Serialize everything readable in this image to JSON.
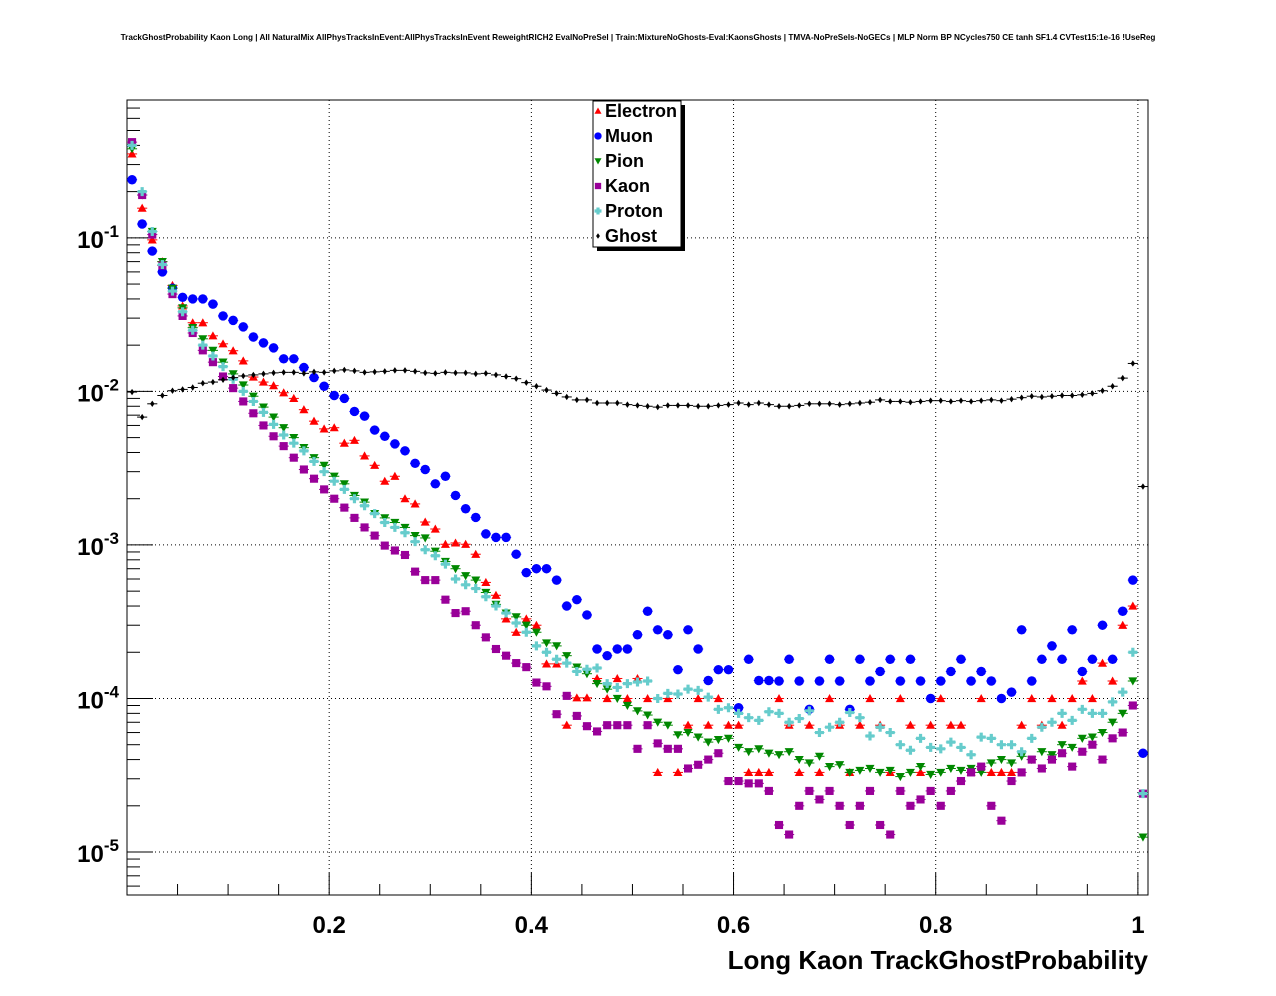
{
  "chart_data": {
    "type": "scatter",
    "title": "TrackGhostProbability Kaon Long | All NaturalMix AllPhysTracksInEvent:AllPhysTracksInEvent ReweightRICH2 EvalNoPreSel | Train:MixtureNoGhosts-Eval:KaonsGhosts | TMVA-NoPreSels-NoGECs | MLP Norm BP NCycles750 CE tanh SF1.4 CVTest15:1e-16 !UseReg",
    "xlabel": "Long Kaon TrackGhostProbability",
    "ylabel": "",
    "xlim": [
      0,
      1.01
    ],
    "ylim": [
      5.25e-06,
      0.79
    ],
    "yscale": "log",
    "grid": true,
    "legend_position": "top-center",
    "xticks": [
      0.2,
      0.4,
      0.6,
      0.8,
      1.0
    ],
    "xticklabels": [
      "0.2",
      "0.4",
      "0.6",
      "0.8",
      "1"
    ],
    "yticks": [
      0.1,
      0.01,
      0.001,
      0.0001,
      1e-05
    ],
    "yticklabels": [
      {
        "base": "10",
        "exp": "-1"
      },
      {
        "base": "10",
        "exp": "-2"
      },
      {
        "base": "10",
        "exp": "-3"
      },
      {
        "base": "10",
        "exp": "-4"
      },
      {
        "base": "10",
        "exp": "-5"
      }
    ],
    "bin_center_start": 0.005,
    "bin_width": 0.01,
    "series": [
      {
        "name": "Electron",
        "color": "#ff0000",
        "marker": "triangle-up",
        "values": [
          0.352,
          0.156,
          0.097,
          0.07,
          0.049,
          0.036,
          0.028,
          0.028,
          0.023,
          0.0204,
          0.0184,
          0.0158,
          0.0124,
          0.0115,
          0.0109,
          0.0098,
          0.009,
          0.0076,
          0.0064,
          0.0057,
          0.0058,
          0.0046,
          0.0048,
          0.0038,
          0.0033,
          0.0026,
          0.0028,
          0.002,
          0.00185,
          0.00141,
          0.00127,
          0.00101,
          0.00103,
          0.00101,
          0.00087,
          0.00057,
          0.00047,
          0.00033,
          0.00027,
          0.00033,
          0.0003,
          0.000168,
          0.000168,
          6.7e-05,
          0.000101,
          0.000101,
          0.000135,
          0.0001,
          0.000135,
          0.0001,
          0.000135,
          0.0001,
          3.3e-05,
          0.0001,
          3.3e-05,
          6.7e-05,
          0.0001,
          6.7e-05,
          0.0001,
          6.7e-05,
          6.7e-05,
          3.3e-05,
          3.3e-05,
          3.3e-05,
          0.0001,
          6.7e-05,
          3.3e-05,
          6.7e-05,
          3.3e-05,
          0.0001,
          6.7e-05,
          3.3e-05,
          6.7e-05,
          0.0001,
          6.7e-05,
          3.3e-05,
          0.0001,
          6.7e-05,
          3.3e-05,
          6.7e-05,
          0.0001,
          6.7e-05,
          6.7e-05,
          3.3e-05,
          0.0001,
          3.3e-05,
          3.3e-05,
          3.3e-05,
          6.7e-05,
          0.0001,
          6.7e-05,
          0.0001,
          6.7e-05,
          0.0001,
          0.00013,
          0.0001,
          0.00017,
          0.00013,
          0.0003,
          0.0004,
          null
        ]
      },
      {
        "name": "Muon",
        "color": "#0000ff",
        "marker": "circle",
        "values": [
          0.239,
          0.123,
          0.082,
          0.06,
          0.047,
          0.041,
          0.04,
          0.04,
          0.037,
          0.031,
          0.029,
          0.0263,
          0.0226,
          0.0207,
          0.0192,
          0.0163,
          0.0163,
          0.0143,
          0.0123,
          0.0108,
          0.0094,
          0.009,
          0.0074,
          0.0069,
          0.0056,
          0.0051,
          0.00455,
          0.0041,
          0.0034,
          0.0031,
          0.0025,
          0.0028,
          0.0021,
          0.00172,
          0.00151,
          0.00118,
          0.00112,
          0.00112,
          0.00087,
          0.00066,
          0.0007,
          0.0007,
          0.00059,
          0.0004,
          0.00044,
          0.00035,
          0.00021,
          0.00019,
          0.00021,
          0.00021,
          0.00026,
          0.00037,
          0.00028,
          0.00026,
          0.000154,
          0.00028,
          0.00021,
          0.000131,
          0.000154,
          0.000154,
          8.7e-05,
          0.00018,
          0.000131,
          0.000131,
          0.00013,
          0.00018,
          0.00013,
          8.5e-05,
          0.00013,
          0.00018,
          0.00013,
          8.5e-05,
          0.00018,
          0.00013,
          0.00015,
          0.00018,
          0.00013,
          0.00018,
          0.00013,
          0.0001,
          0.00013,
          0.00015,
          0.00018,
          0.00013,
          0.00015,
          0.00013,
          0.0001,
          0.00011,
          0.00028,
          0.00013,
          0.00018,
          0.00022,
          0.00018,
          0.00028,
          0.00015,
          0.00018,
          0.0003,
          0.00018,
          0.00037,
          0.00059,
          4.4e-05
        ]
      },
      {
        "name": "Pion",
        "color": "#008800",
        "marker": "triangle-down",
        "values": [
          0.38,
          0.19,
          0.11,
          0.07,
          0.047,
          0.035,
          0.026,
          0.022,
          0.0185,
          0.0155,
          0.013,
          0.011,
          0.0093,
          0.0079,
          0.0068,
          0.0058,
          0.005,
          0.0043,
          0.0037,
          0.0033,
          0.0028,
          0.0025,
          0.0021,
          0.0019,
          0.0016,
          0.0015,
          0.0014,
          0.0013,
          0.00115,
          0.00111,
          0.00091,
          0.00078,
          0.0007,
          0.00063,
          0.00059,
          0.00049,
          0.00041,
          0.00036,
          0.00034,
          0.0003,
          0.00027,
          0.00023,
          0.00022,
          0.00019,
          0.00016,
          0.000145,
          0.000125,
          0.000115,
          0.0001,
          9e-05,
          8.3e-05,
          7.8e-05,
          7e-05,
          6.7e-05,
          5.8e-05,
          6e-05,
          5.6e-05,
          5.2e-05,
          5.4e-05,
          5.5e-05,
          4.8e-05,
          4.5e-05,
          4.7e-05,
          4.4e-05,
          4.3e-05,
          4.5e-05,
          4e-05,
          3.8e-05,
          4.2e-05,
          3.6e-05,
          3.7e-05,
          3.3e-05,
          3.4e-05,
          3.5e-05,
          3.3e-05,
          3.4e-05,
          3.1e-05,
          3.3e-05,
          3.6e-05,
          3.2e-05,
          3.3e-05,
          3.5e-05,
          3.4e-05,
          3.5e-05,
          3.3e-05,
          3.8e-05,
          4e-05,
          3.8e-05,
          4.2e-05,
          4e-05,
          4.5e-05,
          4.3e-05,
          5e-05,
          4.8e-05,
          5.5e-05,
          5.6e-05,
          6e-05,
          7e-05,
          8e-05,
          0.00013,
          1.25e-05
        ]
      },
      {
        "name": "Kaon",
        "color": "#990099",
        "marker": "square",
        "values": [
          0.42,
          0.19,
          0.105,
          0.066,
          0.043,
          0.031,
          0.024,
          0.0185,
          0.0155,
          0.0125,
          0.0105,
          0.0086,
          0.0072,
          0.006,
          0.0051,
          0.0044,
          0.0037,
          0.0031,
          0.0027,
          0.0023,
          0.002,
          0.00175,
          0.0015,
          0.0013,
          0.00115,
          0.00099,
          0.00092,
          0.00086,
          0.00067,
          0.00059,
          0.00059,
          0.00044,
          0.00036,
          0.00037,
          0.0003,
          0.00025,
          0.00021,
          0.00019,
          0.00017,
          0.00016,
          0.000127,
          0.00012,
          7.9e-05,
          0.000104,
          7.7e-05,
          6.6e-05,
          6.1e-05,
          6.7e-05,
          6.7e-05,
          6.7e-05,
          4.7e-05,
          6.7e-05,
          5.1e-05,
          4.7e-05,
          4.7e-05,
          3.5e-05,
          3.7e-05,
          4e-05,
          4.4e-05,
          2.9e-05,
          2.9e-05,
          2.8e-05,
          2.8e-05,
          2.5e-05,
          1.5e-05,
          1.3e-05,
          2e-05,
          2.5e-05,
          2.2e-05,
          2.5e-05,
          2e-05,
          1.5e-05,
          2e-05,
          2.5e-05,
          1.5e-05,
          1.3e-05,
          2.5e-05,
          2e-05,
          2.2e-05,
          2.5e-05,
          2e-05,
          2.5e-05,
          2.9e-05,
          3.3e-05,
          3.6e-05,
          2e-05,
          1.6e-05,
          2.9e-05,
          3.3e-05,
          4e-05,
          3.5e-05,
          4e-05,
          4.4e-05,
          3.6e-05,
          4.5e-05,
          5e-05,
          4e-05,
          5.5e-05,
          6e-05,
          9e-05,
          2.4e-05
        ]
      },
      {
        "name": "Proton",
        "color": "#66cccc",
        "marker": "cross",
        "values": [
          0.4,
          0.2,
          0.11,
          0.067,
          0.045,
          0.033,
          0.025,
          0.02,
          0.017,
          0.0145,
          0.012,
          0.01,
          0.0086,
          0.0073,
          0.0061,
          0.0052,
          0.0046,
          0.0041,
          0.0035,
          0.003,
          0.0026,
          0.0023,
          0.002,
          0.0018,
          0.0016,
          0.0014,
          0.0013,
          0.0012,
          0.00105,
          0.00093,
          0.00085,
          0.00075,
          0.0006,
          0.00055,
          0.00052,
          0.00046,
          0.0004,
          0.00036,
          0.00031,
          0.00027,
          0.00022,
          0.0002,
          0.00018,
          0.00017,
          0.00015,
          0.000155,
          0.000158,
          0.000125,
          0.000118,
          0.000125,
          0.000128,
          0.00013,
          0.0001,
          0.000108,
          0.000107,
          0.000115,
          0.000113,
          0.000102,
          8.5e-05,
          8.7e-05,
          8e-05,
          7.5e-05,
          7.2e-05,
          8.2e-05,
          8e-05,
          7e-05,
          7.4e-05,
          8.3e-05,
          6e-05,
          6.5e-05,
          7e-05,
          8.1e-05,
          7.5e-05,
          5.7e-05,
          6.5e-05,
          6e-05,
          5e-05,
          4.6e-05,
          5.5e-05,
          4.8e-05,
          4.7e-05,
          5.2e-05,
          4.8e-05,
          4.3e-05,
          5.6e-05,
          5.5e-05,
          5e-05,
          5e-05,
          4.5e-05,
          5.5e-05,
          6.5e-05,
          7e-05,
          8e-05,
          7.2e-05,
          8.5e-05,
          8e-05,
          8e-05,
          9.5e-05,
          0.00011,
          0.0002,
          2.4e-05
        ]
      },
      {
        "name": "Ghost",
        "color": "#000000",
        "marker": "diamond",
        "values": [
          0.0099,
          0.0068,
          0.0083,
          0.0094,
          0.0101,
          0.0103,
          0.0106,
          0.0113,
          0.0115,
          0.0119,
          0.0123,
          0.0126,
          0.0128,
          0.013,
          0.0132,
          0.0133,
          0.0133,
          0.0131,
          0.0134,
          0.0133,
          0.0136,
          0.0138,
          0.0136,
          0.0133,
          0.0134,
          0.0135,
          0.0137,
          0.0137,
          0.0135,
          0.0132,
          0.0131,
          0.0133,
          0.0132,
          0.0132,
          0.013,
          0.0131,
          0.0128,
          0.0125,
          0.0121,
          0.0114,
          0.0108,
          0.0102,
          0.0097,
          0.0092,
          0.0088,
          0.0088,
          0.0084,
          0.0084,
          0.0084,
          0.0082,
          0.0081,
          0.008,
          0.0079,
          0.0081,
          0.0081,
          0.0081,
          0.008,
          0.008,
          0.0081,
          0.0082,
          0.0084,
          0.0082,
          0.0084,
          0.0082,
          0.008,
          0.008,
          0.0081,
          0.0083,
          0.0083,
          0.0083,
          0.0082,
          0.0083,
          0.0084,
          0.0085,
          0.0088,
          0.0086,
          0.0086,
          0.0085,
          0.0086,
          0.0087,
          0.0087,
          0.0086,
          0.0087,
          0.0086,
          0.0087,
          0.0088,
          0.0087,
          0.0089,
          0.0091,
          0.0093,
          0.0092,
          0.0093,
          0.0094,
          0.0094,
          0.0095,
          0.0097,
          0.0101,
          0.0108,
          0.0122,
          0.0152,
          0.0024
        ]
      }
    ]
  }
}
